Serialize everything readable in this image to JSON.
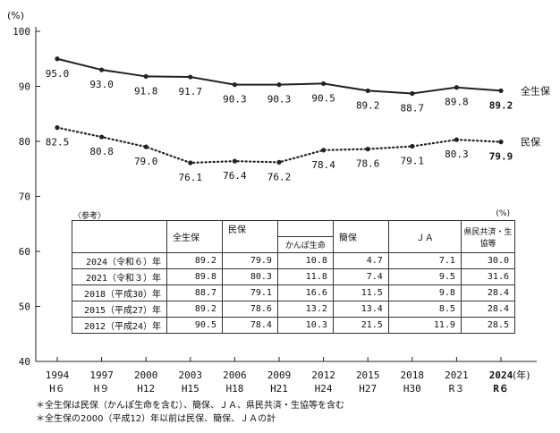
{
  "chart_data": {
    "type": "line",
    "y_unit": "(%)",
    "x_unit": "(年)",
    "ylim": [
      40,
      100
    ],
    "yticks": [
      40,
      50,
      60,
      70,
      80,
      90,
      100
    ],
    "x": [
      "1994",
      "1997",
      "2000",
      "2003",
      "2006",
      "2009",
      "2012",
      "2015",
      "2018",
      "2021",
      "2024"
    ],
    "x_era": [
      "H６",
      "H９",
      "H12",
      "H15",
      "H18",
      "H21",
      "H24",
      "H27",
      "H30",
      "R３",
      "R６"
    ],
    "series": [
      {
        "name": "全生保",
        "style": "solid",
        "values": [
          95.0,
          93.0,
          91.8,
          91.7,
          90.3,
          90.3,
          90.5,
          89.2,
          88.7,
          89.8,
          89.2
        ],
        "labels": [
          "95.0",
          "93.0",
          "91.8",
          "91.7",
          "90.3",
          "90.3",
          "90.5",
          "89.2",
          "88.7",
          "89.8",
          "89.2"
        ]
      },
      {
        "name": "民保",
        "style": "dotted",
        "values": [
          82.5,
          80.8,
          79.0,
          76.1,
          76.4,
          76.2,
          78.4,
          78.6,
          79.1,
          80.3,
          79.9
        ],
        "labels": [
          "82.5",
          "80.8",
          "79.0",
          "76.1",
          "76.4",
          "76.2",
          "78.4",
          "78.6",
          "79.1",
          "80.3",
          "79.9"
        ]
      }
    ],
    "grid": false,
    "color": "#222222"
  },
  "reference_table": {
    "title": "〈参考〉",
    "unit": "(%)",
    "col_zenseiho": "全生保",
    "col_minpo": "民保",
    "col_kanpo": "かんぽ生命",
    "col_kampo": "簡保",
    "col_ja": "ＪＡ",
    "col_kenmin": "県民共済・生協等",
    "rows": [
      {
        "year": "2024（令和６）年",
        "zenseiho": "89.2",
        "minpo": "79.9",
        "kanpo": "10.8",
        "kampo": "4.7",
        "ja": "7.1",
        "kenmin": "30.0"
      },
      {
        "year": "2021（令和３）年",
        "zenseiho": "89.8",
        "minpo": "80.3",
        "kanpo": "11.8",
        "kampo": "7.4",
        "ja": "9.5",
        "kenmin": "31.6"
      },
      {
        "year": "2018（平成30）年",
        "zenseiho": "88.7",
        "minpo": "79.1",
        "kanpo": "16.6",
        "kampo": "11.5",
        "ja": "9.8",
        "kenmin": "28.4"
      },
      {
        "year": "2015（平成27）年",
        "zenseiho": "89.2",
        "minpo": "78.6",
        "kanpo": "13.2",
        "kampo": "13.4",
        "ja": "8.5",
        "kenmin": "28.4"
      },
      {
        "year": "2012（平成24）年",
        "zenseiho": "90.5",
        "minpo": "78.4",
        "kanpo": "10.3",
        "kampo": "21.5",
        "ja": "11.9",
        "kenmin": "28.5"
      }
    ]
  },
  "notes": [
    "＊全生保は民保（かんぽ生命を含む）、簡保、ＪＡ、県民共済・生協等を含む",
    "＊全生保の2000（平成12）年以前は民保、簡保、ＪＡの計"
  ]
}
